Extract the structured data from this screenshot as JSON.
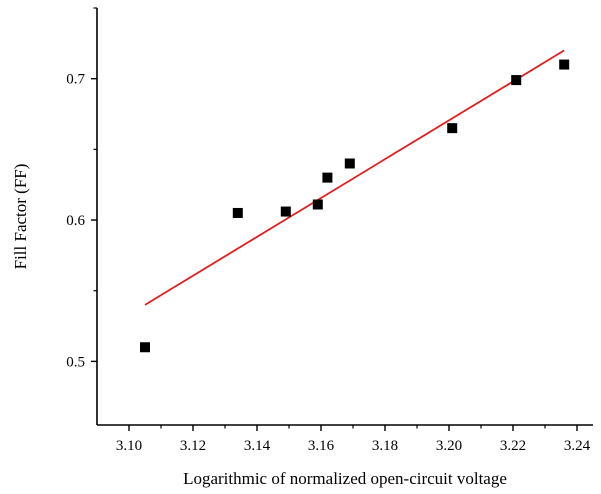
{
  "chart_data": {
    "type": "scatter",
    "title": "",
    "xlabel": "Logarithmic of normalized open-circuit voltage",
    "ylabel": "Fill Factor (FF)",
    "xlim": [
      3.09,
      3.245
    ],
    "ylim": [
      0.455,
      0.75
    ],
    "x_ticks": [
      3.1,
      3.12,
      3.14,
      3.16,
      3.18,
      3.2,
      3.22,
      3.24
    ],
    "x_tick_labels": [
      "3.10",
      "3.12",
      "3.14",
      "3.16",
      "3.18",
      "3.20",
      "3.22",
      "3.24"
    ],
    "y_ticks": [
      0.5,
      0.6,
      0.7
    ],
    "y_tick_labels": [
      "0.5",
      "0.6",
      "0.7"
    ],
    "grid": false,
    "legend": "none",
    "series": [
      {
        "type": "scatter",
        "marker": "square",
        "color": "#000000",
        "x": [
          3.105,
          3.134,
          3.149,
          3.159,
          3.162,
          3.169,
          3.201,
          3.221,
          3.236
        ],
        "y": [
          0.51,
          0.605,
          0.606,
          0.611,
          0.63,
          0.64,
          0.665,
          0.699,
          0.71
        ]
      },
      {
        "type": "line",
        "color": "#e02020",
        "x": [
          3.105,
          3.236
        ],
        "y": [
          0.54,
          0.72
        ]
      }
    ]
  }
}
